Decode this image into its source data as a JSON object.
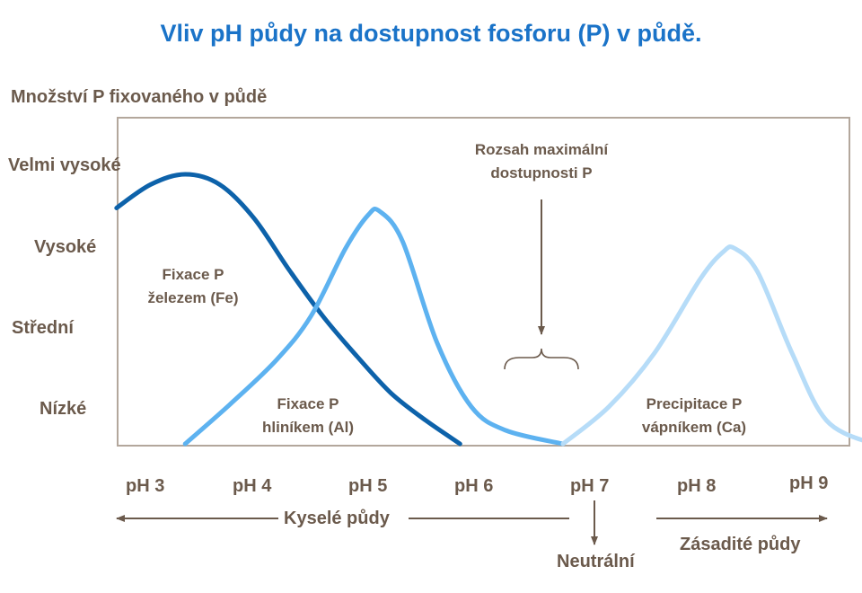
{
  "title": "Vliv pH půdy na dostupnost fosforu (P) v půdě.",
  "y_axis_label": "Množství P fixovaného v půdě",
  "y_levels": [
    "Velmi vysoké",
    "Vysoké",
    "Střední",
    "Nízké"
  ],
  "x_ticks": [
    "pH 3",
    "pH 4",
    "pH 5",
    "pH 6",
    "pH 7",
    "pH 8",
    "pH 9"
  ],
  "annotations": {
    "max_range_line1": "Rozsah maximální",
    "max_range_line2": "dostupnosti P",
    "iron_line1": "Fixace P",
    "iron_line2": "železem (Fe)",
    "al_line1": "Fixace P",
    "al_line2": "hliníkem  (Al)",
    "ca_line1": "Precipitace  P",
    "ca_line2": "vápníkem (Ca)"
  },
  "regions": {
    "acid": "Kyselé půdy",
    "neutral": "Neutrální",
    "alkaline": "Zásadité půdy"
  },
  "colors": {
    "title": "#1a73c8",
    "text": "#6b5a4c",
    "frame": "#b3a79c",
    "iron_curve": "#0d62aa",
    "aluminium_curve": "#5db2f0",
    "calcium_curve": "#b6dcf8",
    "arrows": "#6b5a4c"
  },
  "chart_data": {
    "type": "line",
    "x_axis": "pH",
    "xlim": [
      3,
      9
    ],
    "y_scale": "qualitative",
    "series": [
      {
        "label": "Fixace P železem (Fe)",
        "x": [
          2.7,
          3.0,
          3.3,
          3.6,
          3.9,
          4.2,
          4.5,
          4.8,
          5.1,
          5.4,
          5.7
        ],
        "y": [
          3.5,
          3.85,
          4.0,
          3.85,
          3.35,
          2.6,
          1.9,
          1.3,
          0.75,
          0.35,
          0.0
        ]
      },
      {
        "label": "Fixace P hliníkem (Al)",
        "x": [
          3.3,
          3.7,
          4.1,
          4.4,
          4.7,
          4.9,
          5.0,
          5.2,
          5.5,
          5.8,
          6.1,
          6.6
        ],
        "y": [
          0.0,
          0.6,
          1.25,
          1.9,
          2.9,
          3.4,
          3.45,
          3.0,
          1.5,
          0.55,
          0.2,
          0.0
        ]
      },
      {
        "label": "Precipitace P vápníkem (Ca)",
        "x": [
          6.6,
          7.0,
          7.4,
          7.8,
          8.0,
          8.1,
          8.3,
          8.6,
          8.9,
          9.3
        ],
        "y": [
          0.0,
          0.55,
          1.35,
          2.45,
          2.85,
          2.9,
          2.55,
          1.35,
          0.35,
          0.0
        ]
      }
    ]
  }
}
